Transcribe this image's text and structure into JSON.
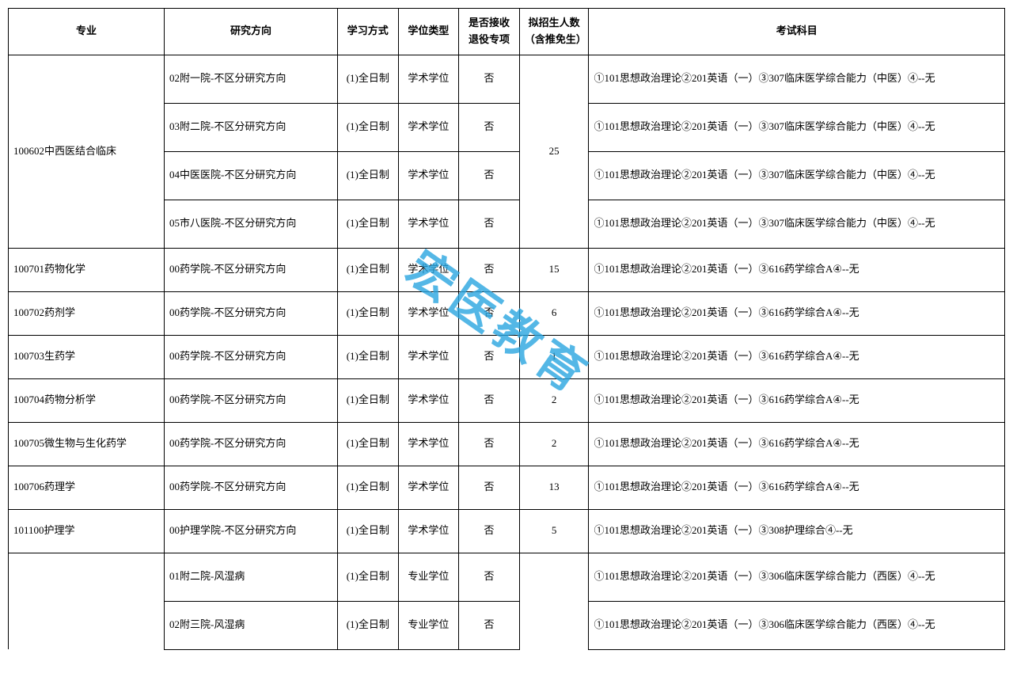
{
  "watermark": "宏医教育",
  "headers": {
    "major": "专业",
    "direction": "研究方向",
    "mode": "学习方式",
    "degree_type": "学位类型",
    "accept_retired": "是否接收退役专项",
    "planned": "拟招生人数（含推免生）",
    "exam": "考试科目"
  },
  "groups": [
    {
      "major": "100602中西医结合临床",
      "planned": "25",
      "rows": [
        {
          "direction": "02附一院-不区分研究方向",
          "mode": "(1)全日制",
          "degree": "学术学位",
          "accept": "否",
          "exam": "①101思想政治理论②201英语（一）③307临床医学综合能力（中医）④--无"
        },
        {
          "direction": "03附二院-不区分研究方向",
          "mode": "(1)全日制",
          "degree": "学术学位",
          "accept": "否",
          "exam": "①101思想政治理论②201英语（一）③307临床医学综合能力（中医）④--无"
        },
        {
          "direction": "04中医医院-不区分研究方向",
          "mode": "(1)全日制",
          "degree": "学术学位",
          "accept": "否",
          "exam": "①101思想政治理论②201英语（一）③307临床医学综合能力（中医）④--无"
        },
        {
          "direction": "05市八医院-不区分研究方向",
          "mode": "(1)全日制",
          "degree": "学术学位",
          "accept": "否",
          "exam": "①101思想政治理论②201英语（一）③307临床医学综合能力（中医）④--无"
        }
      ]
    },
    {
      "major": "100701药物化学",
      "planned": "15",
      "rows": [
        {
          "direction": "00药学院-不区分研究方向",
          "mode": "(1)全日制",
          "degree": "学术学位",
          "accept": "否",
          "exam": "①101思想政治理论②201英语（一）③616药学综合A④--无"
        }
      ]
    },
    {
      "major": "100702药剂学",
      "planned": "6",
      "rows": [
        {
          "direction": "00药学院-不区分研究方向",
          "mode": "(1)全日制",
          "degree": "学术学位",
          "accept": "否",
          "exam": "①101思想政治理论②201英语（一）③616药学综合A④--无"
        }
      ]
    },
    {
      "major": "100703生药学",
      "planned": "1",
      "rows": [
        {
          "direction": "00药学院-不区分研究方向",
          "mode": "(1)全日制",
          "degree": "学术学位",
          "accept": "否",
          "exam": "①101思想政治理论②201英语（一）③616药学综合A④--无"
        }
      ]
    },
    {
      "major": "100704药物分析学",
      "planned": "2",
      "rows": [
        {
          "direction": "00药学院-不区分研究方向",
          "mode": "(1)全日制",
          "degree": "学术学位",
          "accept": "否",
          "exam": "①101思想政治理论②201英语（一）③616药学综合A④--无"
        }
      ]
    },
    {
      "major": "100705微生物与生化药学",
      "planned": "2",
      "rows": [
        {
          "direction": "00药学院-不区分研究方向",
          "mode": "(1)全日制",
          "degree": "学术学位",
          "accept": "否",
          "exam": "①101思想政治理论②201英语（一）③616药学综合A④--无"
        }
      ]
    },
    {
      "major": "100706药理学",
      "planned": "13",
      "rows": [
        {
          "direction": "00药学院-不区分研究方向",
          "mode": "(1)全日制",
          "degree": "学术学位",
          "accept": "否",
          "exam": "①101思想政治理论②201英语（一）③616药学综合A④--无"
        }
      ]
    },
    {
      "major": "101100护理学",
      "planned": "5",
      "rows": [
        {
          "direction": "00护理学院-不区分研究方向",
          "mode": "(1)全日制",
          "degree": "学术学位",
          "accept": "否",
          "exam": "①101思想政治理论②201英语（一）③308护理综合④--无"
        }
      ]
    },
    {
      "major": "",
      "planned": "",
      "rows": [
        {
          "direction": "01附二院-风湿病",
          "mode": "(1)全日制",
          "degree": "专业学位",
          "accept": "否",
          "exam": "①101思想政治理论②201英语（一）③306临床医学综合能力（西医）④--无"
        },
        {
          "direction": "02附三院-风湿病",
          "mode": "(1)全日制",
          "degree": "专业学位",
          "accept": "否",
          "exam": "①101思想政治理论②201英语（一）③306临床医学综合能力（西医）④--无"
        }
      ]
    }
  ]
}
